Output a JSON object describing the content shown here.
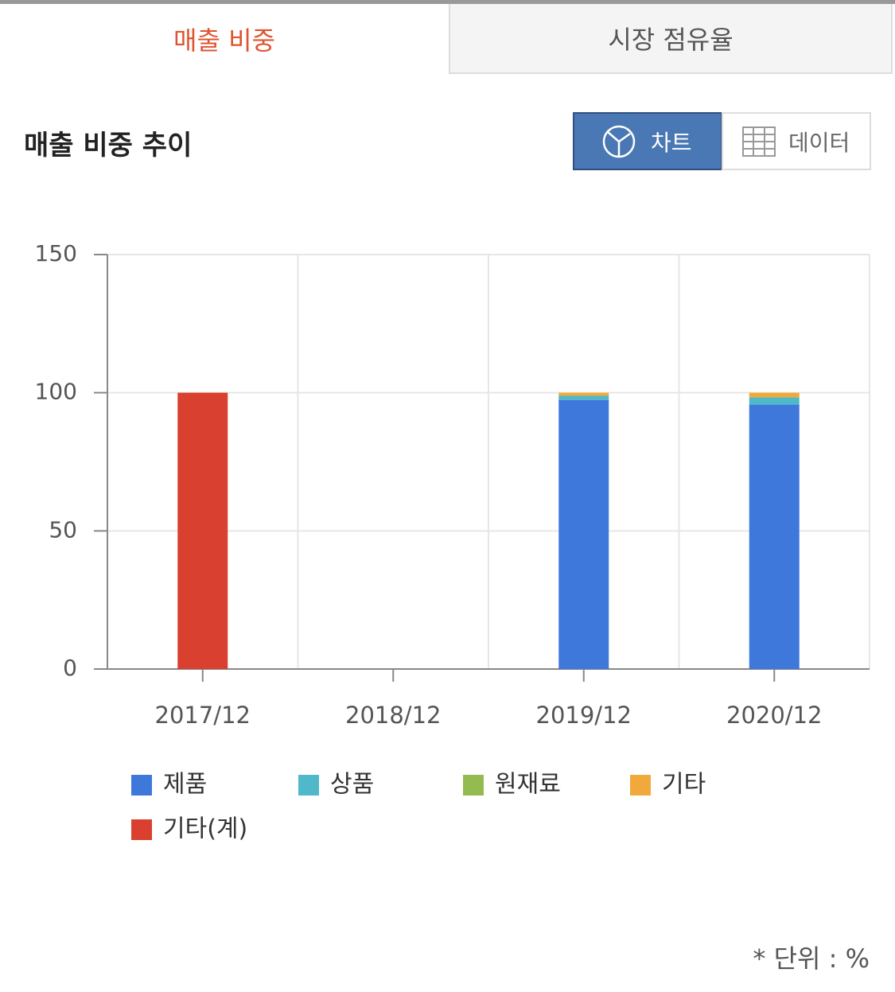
{
  "tabs": [
    "매출 비중",
    "시장 점유율"
  ],
  "section_title": "매출 비중 추이",
  "view_toggle": [
    "차트",
    "데이터"
  ],
  "chart_data": {
    "type": "stacked_bar",
    "categories": [
      "2017/12",
      "2018/12",
      "2019/12",
      "2020/12"
    ],
    "series": [
      {
        "name": "제품",
        "color": "#3f78db",
        "values": [
          null,
          null,
          97.4,
          95.7
        ]
      },
      {
        "name": "상품",
        "color": "#4fb8c9",
        "values": [
          null,
          null,
          1.5,
          2.6
        ]
      },
      {
        "name": "원재료",
        "color": "#93bb4f",
        "values": [
          null,
          null,
          0,
          0
        ]
      },
      {
        "name": "기타",
        "color": "#f2a93b",
        "values": [
          null,
          null,
          1.1,
          1.7
        ]
      },
      {
        "name": "기타(계)",
        "color": "#d9402f",
        "values": [
          100,
          null,
          null,
          null
        ]
      }
    ],
    "ylim": [
      0,
      150
    ],
    "yticks": [
      0,
      50,
      100,
      150
    ],
    "grid": true
  },
  "unit_note": "* 단위 : %"
}
